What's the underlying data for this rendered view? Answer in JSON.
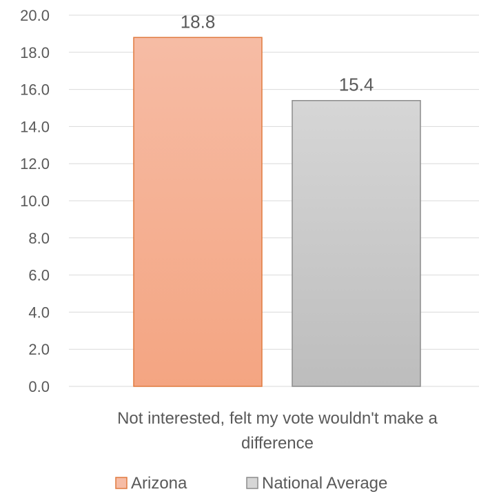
{
  "chart_data": {
    "type": "bar",
    "categories": [
      "Not interested, felt my vote wouldn't make a difference"
    ],
    "category_lines": [
      "Not interested, felt my vote wouldn't make a",
      "difference"
    ],
    "series": [
      {
        "name": "Arizona",
        "values": [
          18.8
        ],
        "color": "#f4a582",
        "color_top": "#f6bca5",
        "stroke": "#e07a3e"
      },
      {
        "name": "National Average",
        "values": [
          15.4
        ],
        "color": "#bdbdbd",
        "color_top": "#d6d6d6",
        "stroke": "#8c8c8c"
      }
    ],
    "data_labels": [
      "18.8",
      "15.4"
    ],
    "yticks": [
      "0.0",
      "2.0",
      "4.0",
      "6.0",
      "8.0",
      "10.0",
      "12.0",
      "14.0",
      "16.0",
      "18.0",
      "20.0"
    ],
    "ylim": [
      0,
      20
    ],
    "grid": true,
    "legend_position": "bottom"
  }
}
